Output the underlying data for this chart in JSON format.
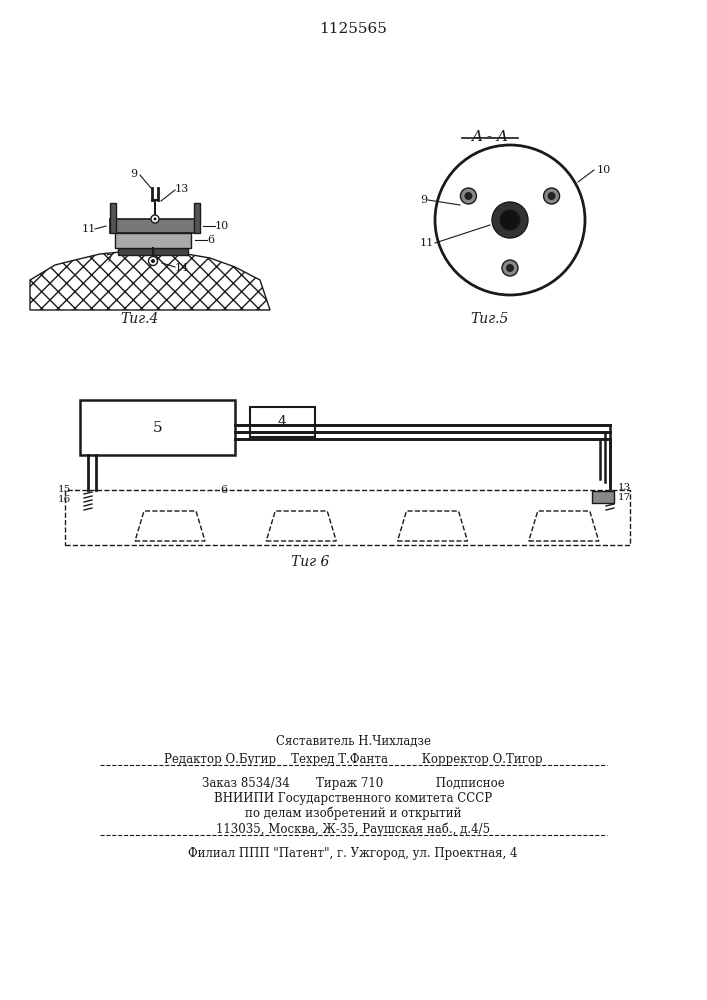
{
  "patent_number": "1125565",
  "bg_color": "#ffffff",
  "line_color": "#1a1a1a",
  "fig4_caption": "Τиг.4",
  "fig5_caption": "Τиг.5",
  "fig6_caption": "Τиг 6",
  "footer_lines": [
    "Сяставитель Н.Чихладзе",
    "Редактор О.Бугир    Техред Т.Фанта         Корректор О.Тигор",
    "Заказ 8534/34       Тираж 710              Подписное",
    "ВНИИПИ Государственного комитета СССР",
    "по делам изобретений и открытий",
    "113035, Москва, Ж-35, Раушская наб., д.4/5",
    "Филиал ППП \"Патент\", г. Ужгород, ул. Проектная, 4"
  ]
}
